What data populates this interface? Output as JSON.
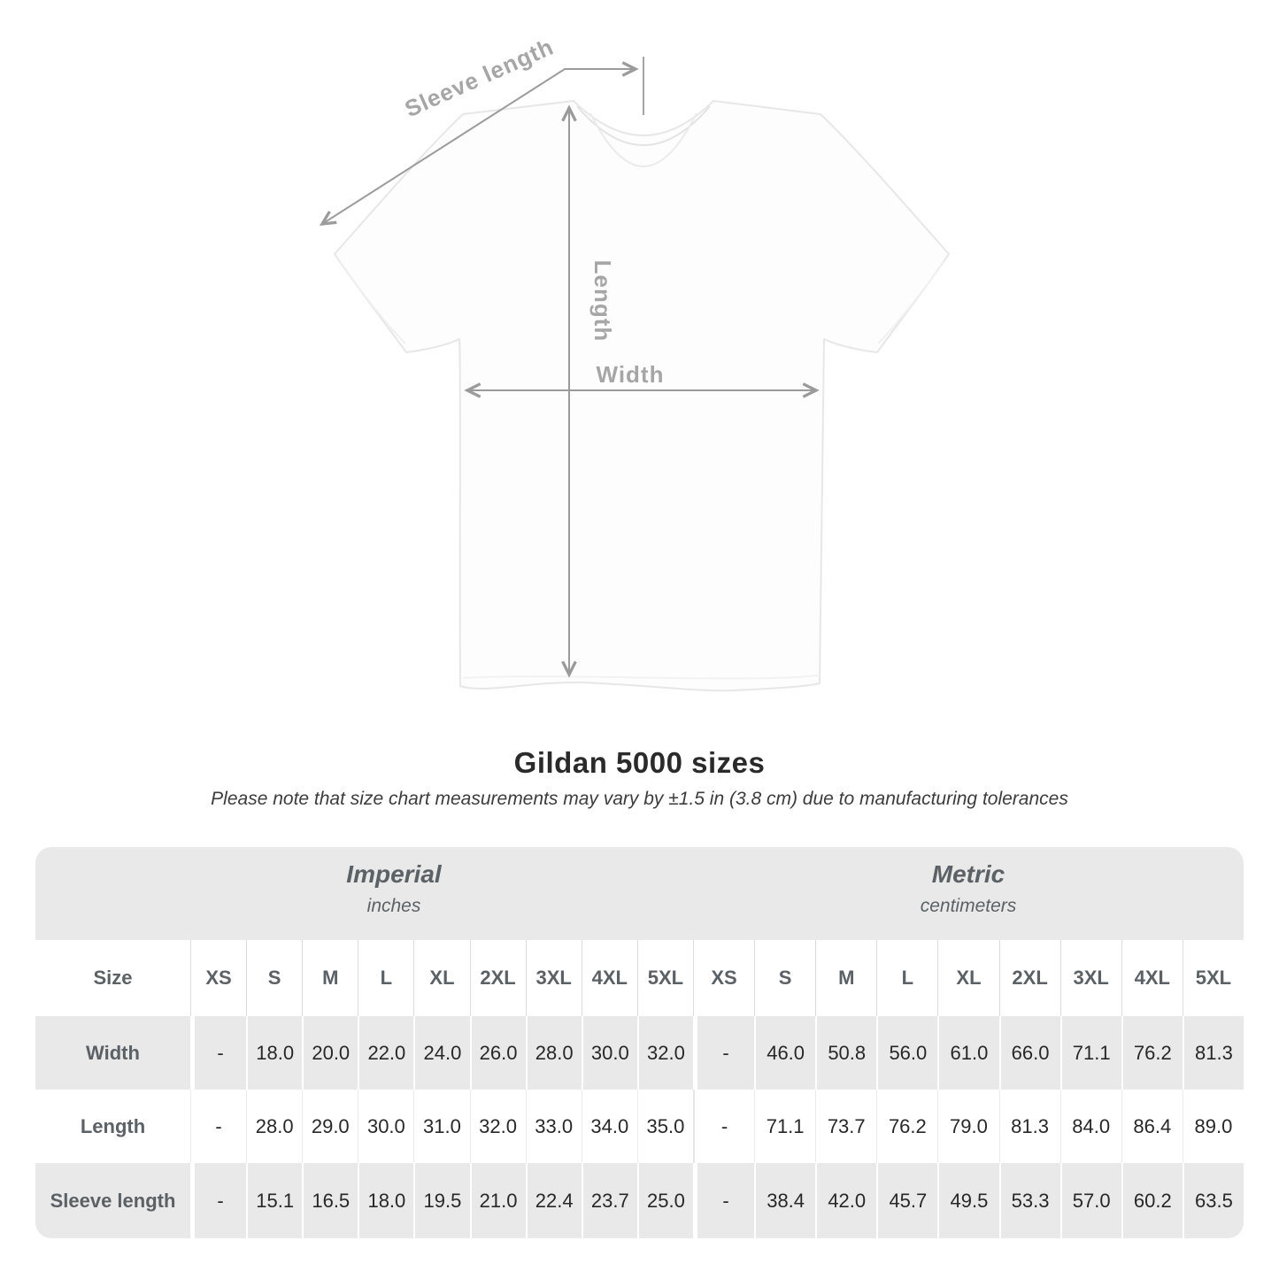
{
  "diagram": {
    "sleeve_length_label": "Sleeve length",
    "length_label": "Length",
    "width_label": "Width"
  },
  "chart_data": {
    "type": "table",
    "title": "Gildan 5000 sizes",
    "subtitle": "Please note that size chart measurements may vary by ±1.5 in (3.8 cm) due to manufacturing tolerances",
    "row_header": "Size",
    "sections": [
      {
        "name": "Imperial",
        "unit": "inches",
        "sizes": [
          "XS",
          "S",
          "M",
          "L",
          "XL",
          "2XL",
          "3XL",
          "4XL",
          "5XL"
        ]
      },
      {
        "name": "Metric",
        "unit": "centimeters",
        "sizes": [
          "XS",
          "S",
          "M",
          "L",
          "XL",
          "2XL",
          "3XL",
          "4XL",
          "5XL"
        ]
      }
    ],
    "measurements": [
      {
        "label": "Width",
        "imperial": [
          "-",
          "18.0",
          "20.0",
          "22.0",
          "24.0",
          "26.0",
          "28.0",
          "30.0",
          "32.0"
        ],
        "metric": [
          "-",
          "46.0",
          "50.8",
          "56.0",
          "61.0",
          "66.0",
          "71.1",
          "76.2",
          "81.3"
        ]
      },
      {
        "label": "Length",
        "imperial": [
          "-",
          "28.0",
          "29.0",
          "30.0",
          "31.0",
          "32.0",
          "33.0",
          "34.0",
          "35.0"
        ],
        "metric": [
          "-",
          "71.1",
          "73.7",
          "76.2",
          "79.0",
          "81.3",
          "84.0",
          "86.4",
          "89.0"
        ]
      },
      {
        "label": "Sleeve length",
        "imperial": [
          "-",
          "15.1",
          "16.5",
          "18.0",
          "19.5",
          "21.0",
          "22.4",
          "23.7",
          "25.0"
        ],
        "metric": [
          "-",
          "38.4",
          "42.0",
          "45.7",
          "49.5",
          "53.3",
          "57.0",
          "60.2",
          "63.5"
        ]
      }
    ]
  },
  "colors": {
    "arrow_gray": "#9b9b9b",
    "diagram_label_gray": "#a6a6a6",
    "table_band_gray": "#e9e9e9",
    "header_text": "#5b6165",
    "value_text": "#282828"
  }
}
